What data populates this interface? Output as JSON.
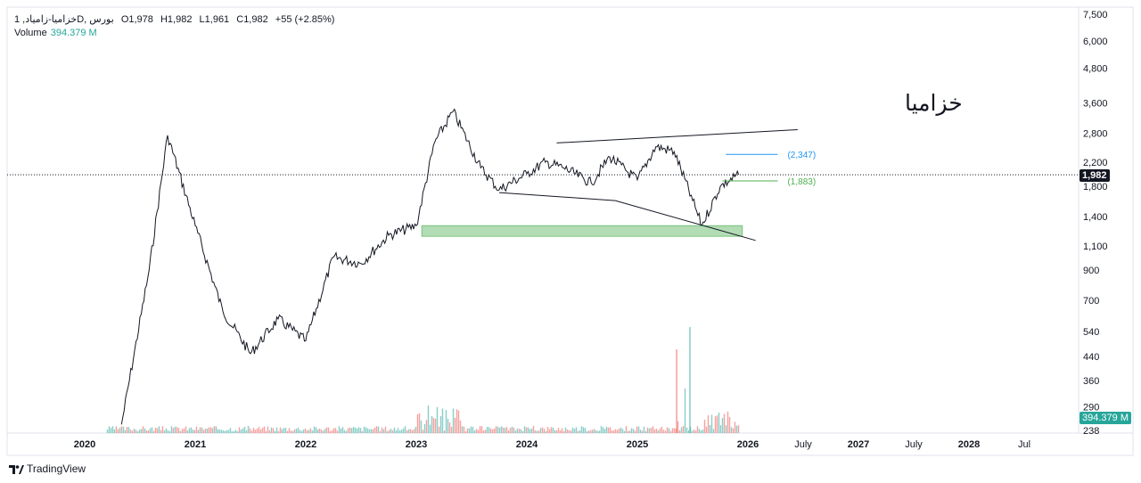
{
  "header": {
    "symbol": "خزامیا-زامیاد, 1D, بورس",
    "open": "O1,978",
    "high": "H1,982",
    "low": "L1,961",
    "close": "C1,982",
    "change": "+55 (+2.85%)",
    "volume_label": "Volume",
    "volume_value": "394.379 M"
  },
  "annotation_text": "خزامیا",
  "brand": "TradingView",
  "price_badge": "1,982",
  "volume_badge": "394.379 M",
  "level_labels": [
    "(2,347)",
    "(1,883)"
  ],
  "colors": {
    "candle": "#131722",
    "volume_up": "#26a69a",
    "volume_down": "#ef5350",
    "zone_fill": "#a5d6a7",
    "zone_border": "#4caf50",
    "level_top": "#2196f3",
    "level_bottom": "#4caf50"
  },
  "chart_data": {
    "type": "line",
    "price_scale": "log",
    "y_ticks": [
      "7,500",
      "6,000",
      "4,800",
      "3,600",
      "2,800",
      "2,200",
      "1,800",
      "1,400",
      "1,100",
      "900",
      "700",
      "540",
      "440",
      "360",
      "290",
      "238"
    ],
    "x_ticks": [
      "2020",
      "2021",
      "2022",
      "2023",
      "2024",
      "2025",
      "2026",
      "July",
      "2027",
      "July",
      "2028",
      "Jul"
    ],
    "x": [
      "2020-05",
      "2020-08",
      "2020-10",
      "2021-01",
      "2021-04",
      "2021-07",
      "2021-10",
      "2022-01",
      "2022-04",
      "2022-07",
      "2022-10",
      "2023-01",
      "2023-03",
      "2023-05",
      "2023-08",
      "2023-10",
      "2024-01",
      "2024-03",
      "2024-05",
      "2024-08",
      "2024-10",
      "2025-01",
      "2025-03",
      "2025-05",
      "2025-07",
      "2025-08",
      "2025-10",
      "2025-12"
    ],
    "series": [
      {
        "values": [
          250,
          900,
          2750,
          1300,
          640,
          450,
          600,
          500,
          1000,
          950,
          1200,
          1300,
          2600,
          3350,
          2100,
          1750,
          2000,
          2200,
          2100,
          1850,
          2300,
          1900,
          2500,
          2400,
          1600,
          1300,
          1800,
          1982
        ]
      }
    ],
    "volume_series": {
      "name": "Volume",
      "last": "394.379 M"
    },
    "last_price": 1982,
    "levels": [
      2347,
      1883
    ],
    "demand_zone": [
      1190,
      1300
    ]
  }
}
